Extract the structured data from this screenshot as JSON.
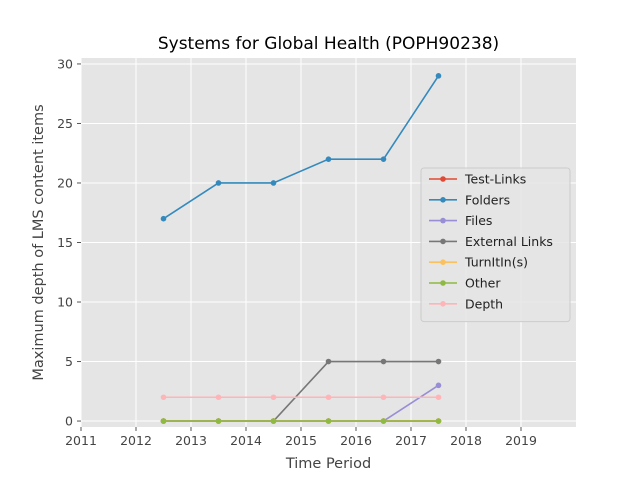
{
  "chart_data": {
    "type": "line",
    "title": "Systems for Global Health (POPH90238)",
    "xlabel": "Time Period",
    "ylabel": "Maximum depth of LMS content items",
    "xlim": [
      2011,
      2020
    ],
    "ylim": [
      -0.5,
      30.5
    ],
    "xticks": [
      2011,
      2012,
      2013,
      2014,
      2015,
      2016,
      2017,
      2018,
      2019
    ],
    "yticks": [
      0,
      5,
      10,
      15,
      20,
      25,
      30
    ],
    "x": [
      2012.5,
      2013.5,
      2014.5,
      2015.5,
      2016.5,
      2017.5
    ],
    "grid": true,
    "legend_position": "center-right",
    "series": [
      {
        "name": "Test-Links",
        "color": "#e24a33",
        "values": [
          0,
          0,
          0,
          0,
          0,
          0
        ]
      },
      {
        "name": "Folders",
        "color": "#348abd",
        "values": [
          17,
          20,
          20,
          22,
          22,
          29
        ]
      },
      {
        "name": "Files",
        "color": "#988ed5",
        "values": [
          0,
          0,
          0,
          0,
          0,
          3
        ]
      },
      {
        "name": "External Links",
        "color": "#777777",
        "values": [
          0,
          0,
          0,
          5,
          5,
          5
        ]
      },
      {
        "name": "TurnItIn(s)",
        "color": "#fbc15e",
        "values": [
          0,
          0,
          0,
          0,
          0,
          0
        ]
      },
      {
        "name": "Other",
        "color": "#8eba42",
        "values": [
          0,
          0,
          0,
          0,
          0,
          0
        ]
      },
      {
        "name": "Depth",
        "color": "#ffb5b8",
        "values": [
          2,
          2,
          2,
          2,
          2,
          2
        ]
      }
    ]
  }
}
